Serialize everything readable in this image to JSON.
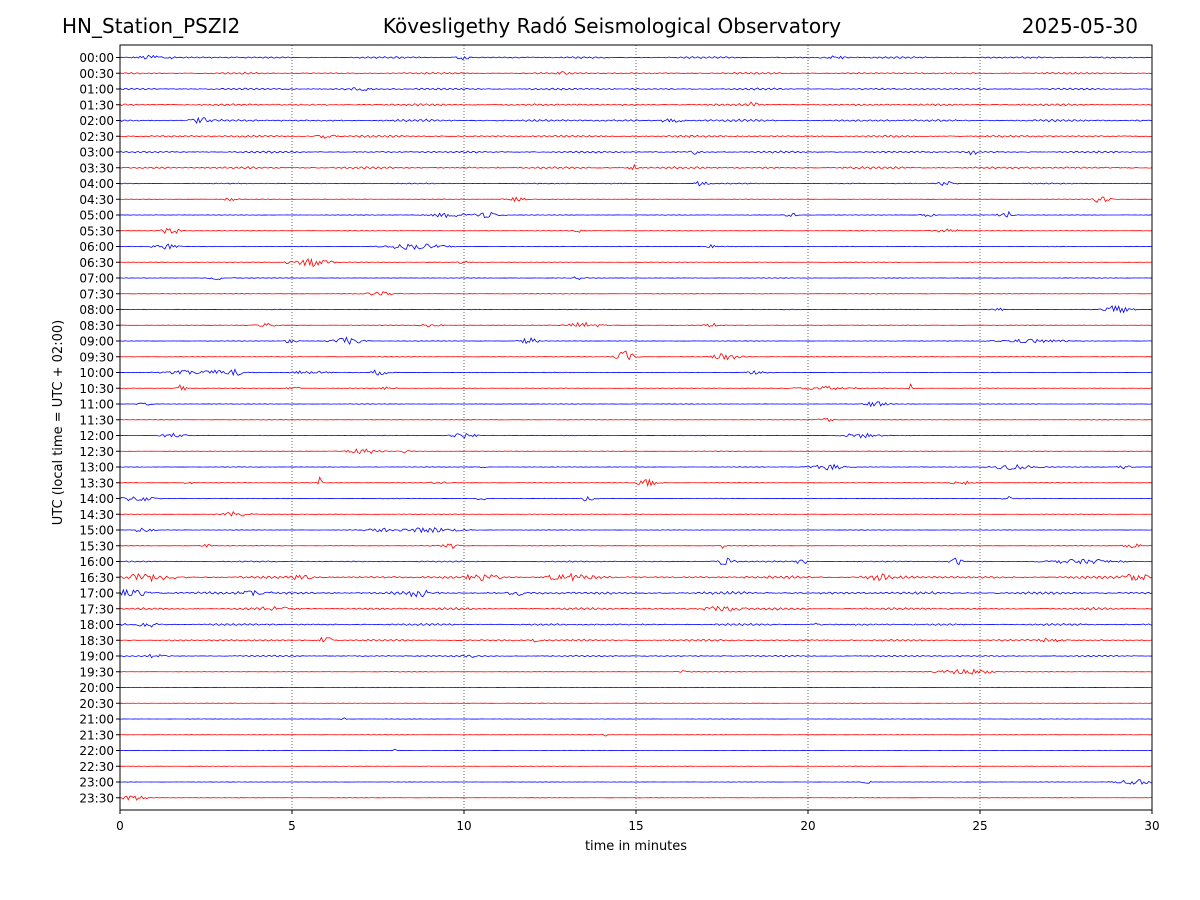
{
  "header": {
    "station": "HN_Station_PSZI2",
    "observatory": "Kövesligethy Radó Seismological Observatory",
    "date": "2025-05-30"
  },
  "chart_data": {
    "type": "line",
    "title": "Kövesligethy Radó Seismological Observatory",
    "xlabel": "time in minutes",
    "ylabel": "UTC (local time = UTC + 02:00)",
    "xlim": [
      0,
      30
    ],
    "xticks": [
      0,
      5,
      10,
      15,
      20,
      25,
      30
    ],
    "grid": "vertical dotted at x ticks",
    "series_colors": [
      "#0000ff",
      "#ff0000"
    ],
    "rows": [
      {
        "label": "00:00",
        "color": "#0000ff",
        "noise": 0.9,
        "events": [
          {
            "t": 1.0,
            "amp": 2.0,
            "dur": 0.8
          },
          {
            "t": 10.0,
            "amp": 1.8,
            "dur": 0.4
          },
          {
            "t": 20.8,
            "amp": 1.5,
            "dur": 0.5
          }
        ]
      },
      {
        "label": "00:30",
        "color": "#ff0000",
        "noise": 0.9,
        "events": [
          {
            "t": 12.8,
            "amp": 1.8,
            "dur": 0.3
          }
        ]
      },
      {
        "label": "01:00",
        "color": "#0000ff",
        "noise": 0.9,
        "events": [
          {
            "t": 7.0,
            "amp": 1.5,
            "dur": 0.5
          }
        ]
      },
      {
        "label": "01:30",
        "color": "#ff0000",
        "noise": 1.0,
        "events": [
          {
            "t": 18.4,
            "amp": 1.5,
            "dur": 0.3
          }
        ]
      },
      {
        "label": "02:00",
        "color": "#0000ff",
        "noise": 1.1,
        "events": [
          {
            "t": 2.4,
            "amp": 1.8,
            "dur": 0.6
          },
          {
            "t": 16.0,
            "amp": 1.6,
            "dur": 0.5
          }
        ]
      },
      {
        "label": "02:30",
        "color": "#ff0000",
        "noise": 1.0,
        "events": [
          {
            "t": 6.0,
            "amp": 1.5,
            "dur": 0.5
          }
        ]
      },
      {
        "label": "03:00",
        "color": "#0000ff",
        "noise": 0.9,
        "events": [
          {
            "t": 24.8,
            "amp": 2.5,
            "dur": 0.2
          },
          {
            "t": 16.7,
            "amp": 1.8,
            "dur": 0.2
          }
        ]
      },
      {
        "label": "03:30",
        "color": "#ff0000",
        "noise": 1.1,
        "events": [
          {
            "t": 14.9,
            "amp": 2.5,
            "dur": 0.2
          }
        ]
      },
      {
        "label": "04:00",
        "color": "#0000ff",
        "noise": 0.5,
        "events": [
          {
            "t": 16.9,
            "amp": 2.0,
            "dur": 0.3
          },
          {
            "t": 24.0,
            "amp": 1.5,
            "dur": 0.4
          }
        ]
      },
      {
        "label": "04:30",
        "color": "#ff0000",
        "noise": 0.3,
        "events": [
          {
            "t": 3.2,
            "amp": 1.5,
            "dur": 0.3
          },
          {
            "t": 11.5,
            "amp": 1.5,
            "dur": 0.5
          },
          {
            "t": 28.5,
            "amp": 2.5,
            "dur": 0.4
          }
        ]
      },
      {
        "label": "05:00",
        "color": "#0000ff",
        "noise": 0.3,
        "events": [
          {
            "t": 9.5,
            "amp": 2.0,
            "dur": 0.8
          },
          {
            "t": 10.7,
            "amp": 2.0,
            "dur": 0.6
          },
          {
            "t": 19.5,
            "amp": 1.5,
            "dur": 0.3
          },
          {
            "t": 23.5,
            "amp": 1.5,
            "dur": 0.3
          },
          {
            "t": 25.8,
            "amp": 2.5,
            "dur": 0.4
          }
        ]
      },
      {
        "label": "05:30",
        "color": "#ff0000",
        "noise": 0.3,
        "events": [
          {
            "t": 1.5,
            "amp": 3.0,
            "dur": 0.4
          },
          {
            "t": 13.3,
            "amp": 1.2,
            "dur": 0.3
          },
          {
            "t": 24.0,
            "amp": 1.5,
            "dur": 0.6
          }
        ]
      },
      {
        "label": "06:00",
        "color": "#0000ff",
        "noise": 0.3,
        "events": [
          {
            "t": 1.3,
            "amp": 2.0,
            "dur": 0.6
          },
          {
            "t": 8.6,
            "amp": 2.2,
            "dur": 1.3
          },
          {
            "t": 17.2,
            "amp": 1.5,
            "dur": 0.2
          }
        ]
      },
      {
        "label": "06:30",
        "color": "#ff0000",
        "noise": 0.3,
        "events": [
          {
            "t": 4.9,
            "amp": 2.5,
            "dur": 0.15
          },
          {
            "t": 5.6,
            "amp": 3.5,
            "dur": 0.7
          },
          {
            "t": 10.0,
            "amp": 1.2,
            "dur": 0.3
          }
        ]
      },
      {
        "label": "07:00",
        "color": "#0000ff",
        "noise": 0.3,
        "events": [
          {
            "t": 2.9,
            "amp": 1.5,
            "dur": 0.5
          },
          {
            "t": 13.3,
            "amp": 1.2,
            "dur": 0.3
          }
        ]
      },
      {
        "label": "07:30",
        "color": "#ff0000",
        "noise": 0.3,
        "events": [
          {
            "t": 7.6,
            "amp": 1.5,
            "dur": 0.7
          }
        ]
      },
      {
        "label": "08:00",
        "color": "#0000ff",
        "noise": 0.3,
        "events": [
          {
            "t": 29.0,
            "amp": 3.0,
            "dur": 0.6
          },
          {
            "t": 25.5,
            "amp": 1.5,
            "dur": 0.3
          }
        ]
      },
      {
        "label": "08:30",
        "color": "#ff0000",
        "noise": 0.3,
        "events": [
          {
            "t": 4.2,
            "amp": 1.8,
            "dur": 0.5
          },
          {
            "t": 9.0,
            "amp": 1.5,
            "dur": 0.5
          },
          {
            "t": 13.5,
            "amp": 2.2,
            "dur": 0.8
          },
          {
            "t": 17.2,
            "amp": 1.5,
            "dur": 0.3
          }
        ]
      },
      {
        "label": "09:00",
        "color": "#0000ff",
        "noise": 0.3,
        "events": [
          {
            "t": 5.0,
            "amp": 2.0,
            "dur": 0.3
          },
          {
            "t": 6.6,
            "amp": 2.5,
            "dur": 0.7
          },
          {
            "t": 11.9,
            "amp": 2.5,
            "dur": 0.4
          },
          {
            "t": 26.5,
            "amp": 1.5,
            "dur": 1.5
          }
        ]
      },
      {
        "label": "09:30",
        "color": "#ff0000",
        "noise": 0.3,
        "events": [
          {
            "t": 14.7,
            "amp": 4.5,
            "dur": 0.4
          },
          {
            "t": 17.6,
            "amp": 3.0,
            "dur": 0.6
          }
        ]
      },
      {
        "label": "10:00",
        "color": "#0000ff",
        "noise": 0.3,
        "events": [
          {
            "t": 2.4,
            "amp": 2.0,
            "dur": 1.5
          },
          {
            "t": 3.4,
            "amp": 3.0,
            "dur": 0.3
          },
          {
            "t": 5.5,
            "amp": 1.5,
            "dur": 0.8
          },
          {
            "t": 7.5,
            "amp": 2.2,
            "dur": 0.4
          },
          {
            "t": 18.5,
            "amp": 1.5,
            "dur": 0.5
          }
        ]
      },
      {
        "label": "10:30",
        "color": "#ff0000",
        "noise": 0.3,
        "events": [
          {
            "t": 1.8,
            "amp": 3.0,
            "dur": 0.2
          },
          {
            "t": 5.0,
            "amp": 2.0,
            "dur": 0.3
          },
          {
            "t": 7.8,
            "amp": 1.5,
            "dur": 0.3
          },
          {
            "t": 20.5,
            "amp": 1.5,
            "dur": 1.3
          },
          {
            "t": 23.0,
            "amp": 4.0,
            "dur": 0.1
          }
        ]
      },
      {
        "label": "11:00",
        "color": "#0000ff",
        "noise": 0.3,
        "events": [
          {
            "t": 0.7,
            "amp": 1.2,
            "dur": 0.3
          },
          {
            "t": 22.0,
            "amp": 2.2,
            "dur": 0.5
          }
        ]
      },
      {
        "label": "11:30",
        "color": "#ff0000",
        "noise": 0.3,
        "events": [
          {
            "t": 20.5,
            "amp": 2.5,
            "dur": 0.3
          }
        ]
      },
      {
        "label": "12:00",
        "color": "#0000ff",
        "noise": 0.3,
        "events": [
          {
            "t": 1.5,
            "amp": 1.5,
            "dur": 0.6
          },
          {
            "t": 10.0,
            "amp": 1.8,
            "dur": 0.6
          },
          {
            "t": 21.5,
            "amp": 1.8,
            "dur": 0.8
          }
        ]
      },
      {
        "label": "12:30",
        "color": "#ff0000",
        "noise": 0.3,
        "events": [
          {
            "t": 7.0,
            "amp": 2.0,
            "dur": 0.8
          },
          {
            "t": 8.3,
            "amp": 1.5,
            "dur": 0.2
          }
        ]
      },
      {
        "label": "13:00",
        "color": "#0000ff",
        "noise": 0.3,
        "events": [
          {
            "t": 10.5,
            "amp": 1.5,
            "dur": 0.2
          },
          {
            "t": 20.6,
            "amp": 2.0,
            "dur": 0.8
          },
          {
            "t": 26.0,
            "amp": 2.0,
            "dur": 1.0
          },
          {
            "t": 29.2,
            "amp": 1.5,
            "dur": 0.3
          }
        ]
      },
      {
        "label": "13:30",
        "color": "#ff0000",
        "noise": 0.3,
        "events": [
          {
            "t": 2.0,
            "amp": 2.0,
            "dur": 0.2
          },
          {
            "t": 5.8,
            "amp": 5.0,
            "dur": 0.1
          },
          {
            "t": 9.3,
            "amp": 1.5,
            "dur": 0.4
          },
          {
            "t": 15.3,
            "amp": 2.5,
            "dur": 0.5
          },
          {
            "t": 24.5,
            "amp": 1.5,
            "dur": 0.6
          }
        ]
      },
      {
        "label": "14:00",
        "color": "#0000ff",
        "noise": 0.3,
        "events": [
          {
            "t": 0.5,
            "amp": 2.5,
            "dur": 0.7
          },
          {
            "t": 10.5,
            "amp": 1.5,
            "dur": 0.2
          },
          {
            "t": 13.6,
            "amp": 2.5,
            "dur": 0.3
          },
          {
            "t": 25.8,
            "amp": 2.0,
            "dur": 0.2
          }
        ]
      },
      {
        "label": "14:30",
        "color": "#ff0000",
        "noise": 0.3,
        "events": [
          {
            "t": 3.4,
            "amp": 1.8,
            "dur": 0.6
          }
        ]
      },
      {
        "label": "15:00",
        "color": "#0000ff",
        "noise": 0.3,
        "events": [
          {
            "t": 0.7,
            "amp": 1.5,
            "dur": 0.5
          },
          {
            "t": 7.5,
            "amp": 1.5,
            "dur": 0.6
          },
          {
            "t": 9.0,
            "amp": 1.8,
            "dur": 1.5
          }
        ]
      },
      {
        "label": "15:30",
        "color": "#ff0000",
        "noise": 0.3,
        "events": [
          {
            "t": 2.5,
            "amp": 1.5,
            "dur": 0.2
          },
          {
            "t": 9.6,
            "amp": 2.0,
            "dur": 0.5
          },
          {
            "t": 17.5,
            "amp": 4.0,
            "dur": 0.1
          },
          {
            "t": 29.5,
            "amp": 1.5,
            "dur": 0.5
          }
        ]
      },
      {
        "label": "16:00",
        "color": "#0000ff",
        "noise": 0.6,
        "events": [
          {
            "t": 17.6,
            "amp": 3.0,
            "dur": 0.4
          },
          {
            "t": 19.8,
            "amp": 2.0,
            "dur": 0.3
          },
          {
            "t": 24.3,
            "amp": 2.5,
            "dur": 0.3
          },
          {
            "t": 28.0,
            "amp": 2.0,
            "dur": 1.5
          }
        ]
      },
      {
        "label": "16:30",
        "color": "#ff0000",
        "noise": 1.3,
        "events": [
          {
            "t": 0.8,
            "amp": 2.5,
            "dur": 1.0
          },
          {
            "t": 5.3,
            "amp": 2.5,
            "dur": 0.4
          },
          {
            "t": 10.5,
            "amp": 2.5,
            "dur": 0.8
          },
          {
            "t": 13.0,
            "amp": 2.5,
            "dur": 1.0
          },
          {
            "t": 22.0,
            "amp": 2.5,
            "dur": 0.6
          },
          {
            "t": 29.5,
            "amp": 3.0,
            "dur": 0.6
          }
        ]
      },
      {
        "label": "17:00",
        "color": "#0000ff",
        "noise": 1.4,
        "events": [
          {
            "t": 0.3,
            "amp": 3.0,
            "dur": 0.8
          },
          {
            "t": 4.0,
            "amp": 2.5,
            "dur": 0.6
          },
          {
            "t": 8.7,
            "amp": 2.5,
            "dur": 0.5
          },
          {
            "t": 11.5,
            "amp": 2.0,
            "dur": 0.5
          }
        ]
      },
      {
        "label": "17:30",
        "color": "#ff0000",
        "noise": 1.1,
        "events": [
          {
            "t": 4.6,
            "amp": 2.0,
            "dur": 0.6
          },
          {
            "t": 17.5,
            "amp": 2.0,
            "dur": 1.0
          }
        ]
      },
      {
        "label": "18:00",
        "color": "#0000ff",
        "noise": 0.9,
        "events": [
          {
            "t": 0.8,
            "amp": 2.0,
            "dur": 0.6
          },
          {
            "t": 20.2,
            "amp": 1.5,
            "dur": 0.3
          }
        ]
      },
      {
        "label": "18:30",
        "color": "#ff0000",
        "noise": 0.9,
        "events": [
          {
            "t": 6.0,
            "amp": 2.5,
            "dur": 0.4
          },
          {
            "t": 12.1,
            "amp": 2.0,
            "dur": 0.2
          },
          {
            "t": 27.0,
            "amp": 1.5,
            "dur": 0.8
          }
        ]
      },
      {
        "label": "19:00",
        "color": "#0000ff",
        "noise": 0.7,
        "events": [
          {
            "t": 1.0,
            "amp": 1.5,
            "dur": 0.5
          },
          {
            "t": 10.2,
            "amp": 1.5,
            "dur": 0.3
          }
        ]
      },
      {
        "label": "19:30",
        "color": "#ff0000",
        "noise": 0.3,
        "events": [
          {
            "t": 16.5,
            "amp": 1.2,
            "dur": 0.4
          },
          {
            "t": 24.6,
            "amp": 2.0,
            "dur": 1.2
          }
        ]
      },
      {
        "label": "20:00",
        "color": "#0000ff",
        "noise": 0.2,
        "events": []
      },
      {
        "label": "20:30",
        "color": "#ff0000",
        "noise": 0.2,
        "events": []
      },
      {
        "label": "21:00",
        "color": "#0000ff",
        "noise": 0.2,
        "events": [
          {
            "t": 6.5,
            "amp": 1.5,
            "dur": 0.1
          }
        ]
      },
      {
        "label": "21:30",
        "color": "#ff0000",
        "noise": 0.2,
        "events": [
          {
            "t": 14.1,
            "amp": 1.2,
            "dur": 0.1
          }
        ]
      },
      {
        "label": "22:00",
        "color": "#0000ff",
        "noise": 0.2,
        "events": [
          {
            "t": 8.0,
            "amp": 1.0,
            "dur": 0.1
          }
        ]
      },
      {
        "label": "22:30",
        "color": "#ff0000",
        "noise": 0.2,
        "events": []
      },
      {
        "label": "23:00",
        "color": "#0000ff",
        "noise": 0.2,
        "events": [
          {
            "t": 21.7,
            "amp": 1.8,
            "dur": 0.15
          },
          {
            "t": 29.5,
            "amp": 1.8,
            "dur": 0.9
          }
        ]
      },
      {
        "label": "23:30",
        "color": "#ff0000",
        "noise": 0.2,
        "events": [
          {
            "t": 0.4,
            "amp": 1.8,
            "dur": 0.6
          }
        ]
      }
    ]
  }
}
